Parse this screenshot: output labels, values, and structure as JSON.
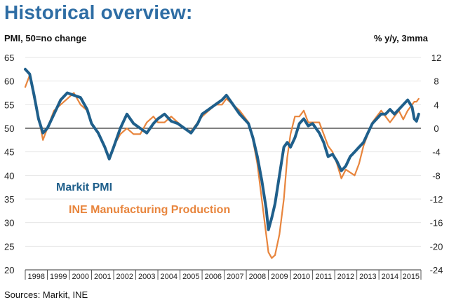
{
  "header": {
    "title": "Historical overview:",
    "left_axis_unit": "PMI, 50=no change",
    "right_axis_unit": "% y/y, 3mma"
  },
  "footer": {
    "source": "Sources: Markit, INE"
  },
  "colors": {
    "pmi": "#1f5f8b",
    "ine": "#e8853d",
    "title": "#2e6da4",
    "zero_line": "#000000"
  },
  "chart_data": {
    "type": "line",
    "x_range": [
      1998.0,
      2015.9
    ],
    "x_tick_labels": [
      "1998",
      "1999",
      "2000",
      "2001",
      "2002",
      "2003",
      "2004",
      "2005",
      "2006",
      "2007",
      "2008",
      "2009",
      "2010",
      "2011",
      "2012",
      "2013",
      "2014",
      "2015"
    ],
    "left_axis": {
      "label": "PMI, 50=no change",
      "range": [
        20,
        65
      ],
      "ticks": [
        20,
        25,
        30,
        35,
        40,
        45,
        50,
        55,
        60,
        65
      ]
    },
    "right_axis": {
      "label": "% y/y, 3mma",
      "range": [
        -24,
        12
      ],
      "ticks": [
        -24,
        -20,
        -16,
        -12,
        -8,
        -4,
        0,
        4,
        8,
        12
      ]
    },
    "reference_line": {
      "axis": "right",
      "value": 0
    },
    "legend": {
      "placement": "lower-left"
    },
    "series": [
      {
        "name": "Markit PMI",
        "axis": "left",
        "points": [
          [
            1998.0,
            62.5
          ],
          [
            1998.2,
            61.5
          ],
          [
            1998.4,
            57
          ],
          [
            1998.6,
            52
          ],
          [
            1998.8,
            49
          ],
          [
            1999.0,
            50
          ],
          [
            1999.3,
            53
          ],
          [
            1999.6,
            56
          ],
          [
            1999.9,
            57.5
          ],
          [
            2000.2,
            57
          ],
          [
            2000.5,
            56.5
          ],
          [
            2000.8,
            54
          ],
          [
            2001.0,
            51
          ],
          [
            2001.3,
            49
          ],
          [
            2001.6,
            46
          ],
          [
            2001.8,
            43.5
          ],
          [
            2002.0,
            46
          ],
          [
            2002.3,
            50
          ],
          [
            2002.6,
            53
          ],
          [
            2002.9,
            51
          ],
          [
            2003.2,
            50
          ],
          [
            2003.5,
            49
          ],
          [
            2003.8,
            51
          ],
          [
            2004.0,
            52
          ],
          [
            2004.3,
            53
          ],
          [
            2004.6,
            51.5
          ],
          [
            2004.9,
            51
          ],
          [
            2005.2,
            50
          ],
          [
            2005.5,
            49
          ],
          [
            2005.8,
            51
          ],
          [
            2006.0,
            53
          ],
          [
            2006.3,
            54
          ],
          [
            2006.6,
            55
          ],
          [
            2006.9,
            56
          ],
          [
            2007.1,
            57
          ],
          [
            2007.4,
            55
          ],
          [
            2007.7,
            53
          ],
          [
            2007.9,
            52
          ],
          [
            2008.1,
            51
          ],
          [
            2008.3,
            48
          ],
          [
            2008.5,
            44
          ],
          [
            2008.7,
            39
          ],
          [
            2008.9,
            33
          ],
          [
            2009.0,
            28.5
          ],
          [
            2009.15,
            31
          ],
          [
            2009.3,
            34
          ],
          [
            2009.5,
            40
          ],
          [
            2009.7,
            46
          ],
          [
            2009.85,
            47
          ],
          [
            2010.0,
            46
          ],
          [
            2010.2,
            48
          ],
          [
            2010.4,
            51
          ],
          [
            2010.6,
            52
          ],
          [
            2010.8,
            50.5
          ],
          [
            2011.0,
            51
          ],
          [
            2011.3,
            49
          ],
          [
            2011.5,
            47
          ],
          [
            2011.7,
            44
          ],
          [
            2011.9,
            44.5
          ],
          [
            2012.1,
            43
          ],
          [
            2012.3,
            41
          ],
          [
            2012.5,
            42
          ],
          [
            2012.7,
            44
          ],
          [
            2012.9,
            45
          ],
          [
            2013.1,
            46
          ],
          [
            2013.3,
            47
          ],
          [
            2013.5,
            49
          ],
          [
            2013.7,
            51
          ],
          [
            2013.9,
            52
          ],
          [
            2014.1,
            53
          ],
          [
            2014.3,
            53
          ],
          [
            2014.5,
            54
          ],
          [
            2014.7,
            53
          ],
          [
            2014.9,
            54
          ],
          [
            2015.1,
            55
          ],
          [
            2015.3,
            56
          ],
          [
            2015.5,
            54.5
          ],
          [
            2015.6,
            52
          ],
          [
            2015.7,
            51.5
          ],
          [
            2015.8,
            53
          ]
        ]
      },
      {
        "name": "INE Manufacturing Production",
        "axis": "right",
        "points": [
          [
            1998.0,
            7
          ],
          [
            1998.2,
            9
          ],
          [
            1998.4,
            5
          ],
          [
            1998.6,
            2
          ],
          [
            1998.8,
            -2
          ],
          [
            1999.0,
            0
          ],
          [
            1999.3,
            3
          ],
          [
            1999.6,
            4
          ],
          [
            1999.9,
            5
          ],
          [
            2000.2,
            6
          ],
          [
            2000.5,
            4
          ],
          [
            2000.8,
            3
          ],
          [
            2001.0,
            1
          ],
          [
            2001.3,
            -1
          ],
          [
            2001.6,
            -3
          ],
          [
            2001.8,
            -5
          ],
          [
            2002.0,
            -3
          ],
          [
            2002.3,
            -1
          ],
          [
            2002.6,
            0
          ],
          [
            2002.9,
            -1
          ],
          [
            2003.2,
            -1
          ],
          [
            2003.5,
            1
          ],
          [
            2003.8,
            2
          ],
          [
            2004.0,
            1
          ],
          [
            2004.3,
            1
          ],
          [
            2004.6,
            2
          ],
          [
            2004.9,
            1
          ],
          [
            2005.2,
            0
          ],
          [
            2005.5,
            -0.5
          ],
          [
            2005.8,
            1
          ],
          [
            2006.0,
            2
          ],
          [
            2006.3,
            3
          ],
          [
            2006.6,
            4
          ],
          [
            2006.9,
            4
          ],
          [
            2007.1,
            5
          ],
          [
            2007.4,
            4
          ],
          [
            2007.7,
            3
          ],
          [
            2007.9,
            2
          ],
          [
            2008.1,
            1
          ],
          [
            2008.3,
            -2
          ],
          [
            2008.5,
            -6
          ],
          [
            2008.7,
            -12
          ],
          [
            2008.9,
            -18
          ],
          [
            2009.0,
            -21
          ],
          [
            2009.15,
            -22
          ],
          [
            2009.3,
            -21.5
          ],
          [
            2009.5,
            -18
          ],
          [
            2009.7,
            -12
          ],
          [
            2009.85,
            -5
          ],
          [
            2010.0,
            -1
          ],
          [
            2010.2,
            2
          ],
          [
            2010.4,
            2
          ],
          [
            2010.6,
            3
          ],
          [
            2010.8,
            1
          ],
          [
            2011.0,
            1
          ],
          [
            2011.3,
            1
          ],
          [
            2011.5,
            -1
          ],
          [
            2011.7,
            -3
          ],
          [
            2011.9,
            -4
          ],
          [
            2012.1,
            -6
          ],
          [
            2012.3,
            -8.5
          ],
          [
            2012.5,
            -7
          ],
          [
            2012.7,
            -7.5
          ],
          [
            2012.9,
            -8
          ],
          [
            2013.1,
            -6
          ],
          [
            2013.3,
            -3
          ],
          [
            2013.5,
            -1
          ],
          [
            2013.7,
            1
          ],
          [
            2013.9,
            2
          ],
          [
            2014.1,
            3
          ],
          [
            2014.3,
            2
          ],
          [
            2014.5,
            1
          ],
          [
            2014.7,
            2
          ],
          [
            2014.9,
            3
          ],
          [
            2015.1,
            1.5
          ],
          [
            2015.3,
            3
          ],
          [
            2015.5,
            4
          ],
          [
            2015.6,
            4.5
          ],
          [
            2015.7,
            4.5
          ],
          [
            2015.8,
            5
          ]
        ]
      }
    ]
  }
}
